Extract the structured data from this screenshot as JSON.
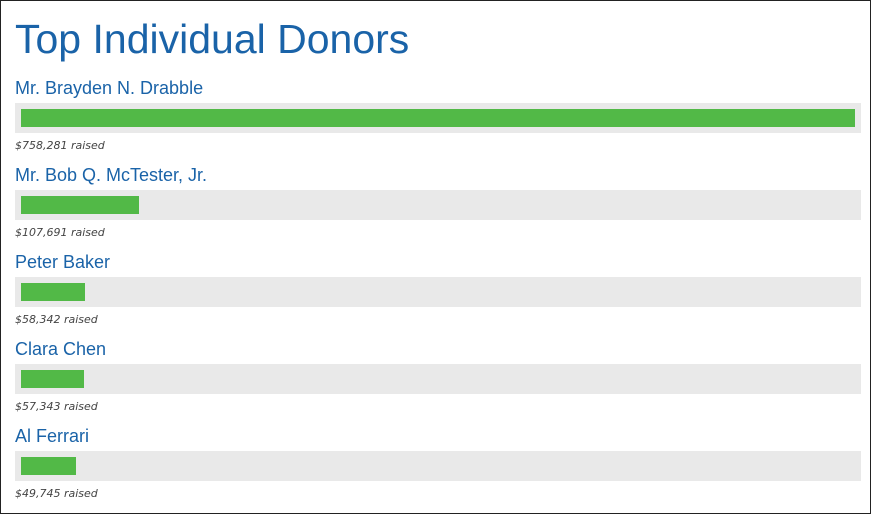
{
  "header": {
    "title": "Top Individual Donors"
  },
  "colors": {
    "title": "#1a63a8",
    "bar_fill": "#52b947",
    "bar_track": "#e9e9e9"
  },
  "donors": [
    {
      "name": "Mr. Brayden N. Drabble",
      "amount": 758281,
      "amount_label": "$758,281 raised"
    },
    {
      "name": "Mr. Bob Q. McTester, Jr.",
      "amount": 107691,
      "amount_label": "$107,691 raised"
    },
    {
      "name": "Peter Baker",
      "amount": 58342,
      "amount_label": "$58,342 raised"
    },
    {
      "name": "Clara Chen",
      "amount": 57343,
      "amount_label": "$57,343 raised"
    },
    {
      "name": "Al Ferrari",
      "amount": 49745,
      "amount_label": "$49,745 raised"
    }
  ]
}
